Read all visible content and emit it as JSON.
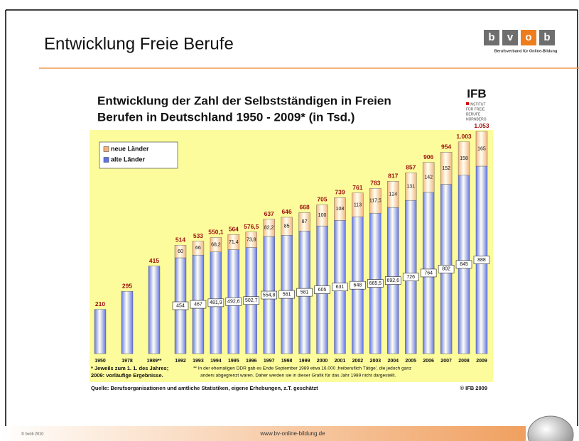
{
  "slide": {
    "title": "Entwicklung Freie Berufe",
    "logo": {
      "letters": [
        "b",
        "v",
        "o",
        "b"
      ],
      "tagline": "Berufsverband für Online-Bildung"
    },
    "footer": {
      "copyright": "© bvob 2010",
      "url": "www.bv-online-bildung.de"
    }
  },
  "chart_data": {
    "type": "stacked_bar",
    "title": [
      "Entwicklung der Zahl der Selbstständigen in Freien",
      "Berufen in Deutschland 1950 - 2009* (in Tsd.)"
    ],
    "logo": {
      "name": "IFB",
      "lines": [
        "INSTITUT",
        "FÜR FREIE",
        "BERUFE",
        "NÜRNBERG"
      ]
    },
    "categories": [
      "1950",
      "1978",
      "1989**",
      "1992",
      "1993",
      "1994",
      "1995",
      "1996",
      "1997",
      "1998",
      "1999",
      "2000",
      "2001",
      "2002",
      "2003",
      "2004",
      "2005",
      "2006",
      "2007",
      "2008",
      "2009"
    ],
    "series": [
      {
        "name": "alte Länder",
        "color": "#5f72e6",
        "values": [
          210,
          295,
          415,
          454,
          467,
          481.9,
          492.6,
          502.7,
          554.8,
          561,
          581,
          605,
          631,
          648,
          665.5,
          692.6,
          726,
          764,
          802,
          845,
          888
        ],
        "value_labels": [
          null,
          null,
          null,
          "454",
          "467",
          "481,9",
          "492,6",
          "502,7",
          "554,8",
          "561",
          "581",
          "605",
          "631",
          "648",
          "665,5",
          "692,6",
          "726",
          "764",
          "802",
          "845",
          "888"
        ]
      },
      {
        "name": "neue Länder",
        "color": "#f2b37a",
        "values": [
          null,
          null,
          null,
          60,
          66,
          68.2,
          71.4,
          73.8,
          82.2,
          85,
          87,
          100,
          108,
          113,
          117.5,
          124,
          131,
          142,
          152,
          158,
          165
        ],
        "value_labels": [
          null,
          null,
          null,
          "60",
          "66",
          "68,2",
          "71,4",
          "73,8",
          "82,2",
          "85",
          "87",
          "100",
          "108",
          "113",
          "117,5",
          "124",
          "131",
          "142",
          "152",
          "158",
          "165"
        ]
      }
    ],
    "totals": {
      "values": [
        210,
        295,
        415,
        514,
        533,
        550.1,
        564,
        576.5,
        637,
        646,
        668,
        705,
        739,
        761,
        783,
        817,
        857,
        906,
        954,
        1003,
        1053
      ],
      "value_labels": [
        "210",
        "295",
        "415",
        "514",
        "533",
        "550,1",
        "564",
        "576,5",
        "637",
        "646",
        "668",
        "705",
        "739",
        "761",
        "783",
        "817",
        "857",
        "906",
        "954",
        "1.003",
        "1.053"
      ]
    },
    "legend": "top-left",
    "notes": [
      [
        "* Jeweils zum 1. 1. des Jahres;",
        "2009: vorläufige Ergebnisse."
      ],
      [
        "** In der ehemaligen DDR gab es Ende September 1989 etwa 16.000 ‚freiberuflich Tätige', die jedoch ganz",
        "anders abgegrenzt waren. Daher werden sie in dieser Grafik für das Jahr 1989 nicht dargestellt."
      ]
    ],
    "source": "Quelle: Berufsorganisationen und amtliche Statistiken, eigene Erhebungen, z.T. geschätzt",
    "copyright": "© IFB 2009"
  }
}
